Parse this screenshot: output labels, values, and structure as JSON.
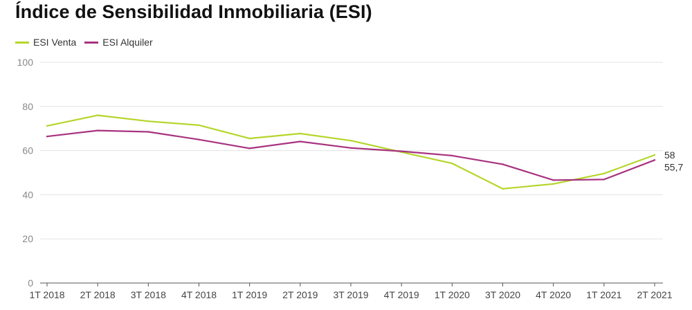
{
  "chart_data": {
    "type": "line",
    "title": "Índice de Sensibilidad Inmobiliaria (ESI)",
    "categories": [
      "1T 2018",
      "2T 2018",
      "3T 2018",
      "4T 2018",
      "1T 2019",
      "2T 2019",
      "3T 2019",
      "4T 2019",
      "1T 2020",
      "3T 2020",
      "4T 2020",
      "1T 2021",
      "2T 2021"
    ],
    "ylim": [
      0,
      100
    ],
    "yticks": [
      "0",
      "20",
      "40",
      "60",
      "80",
      "100"
    ],
    "grid": true,
    "legend_position": "top-left",
    "series": [
      {
        "name": "ESI Venta",
        "color": "#b5d52a",
        "values": [
          71.2,
          76.0,
          73.3,
          71.5,
          65.5,
          67.7,
          64.5,
          59.3,
          54.2,
          42.7,
          44.9,
          49.6,
          58.0
        ],
        "end_label": "58"
      },
      {
        "name": "ESI Alquiler",
        "color": "#a8327f",
        "values": [
          66.4,
          69.1,
          68.5,
          65.0,
          61.0,
          64.1,
          61.2,
          59.7,
          57.7,
          53.8,
          46.6,
          46.9,
          55.7
        ],
        "end_label": "55,7"
      }
    ]
  }
}
